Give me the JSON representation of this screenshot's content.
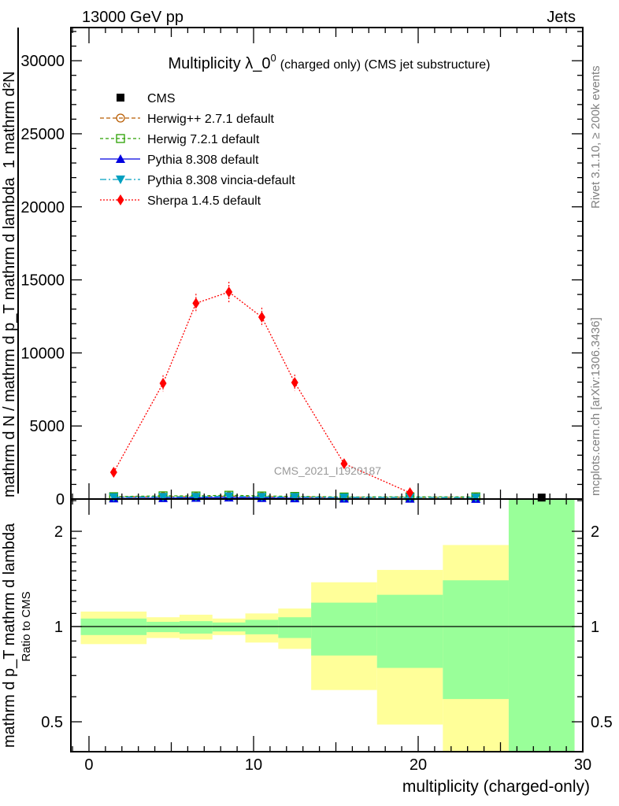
{
  "header": {
    "left": "13000 GeV pp",
    "right": "Jets"
  },
  "side": {
    "rivet": "Rivet 3.1.10, ≥ 200k events",
    "mcplots": "mcplots.cern.ch [arXiv:1306.3436]"
  },
  "watermark": "CMS_2021_I1920187",
  "ylabel": {
    "num1": "1",
    "den1": "mathrm d N / mathrm d p_T mathrm d lambda",
    "num2": "mathrm d²N",
    "den2": "mathrm d p_T mathrm d lambda"
  },
  "chart_data": [
    {
      "type": "line",
      "title_main": "Multiplicity λ_0",
      "title_sup": "0",
      "title_rest": "(charged only) (CMS jet substructure)",
      "xlabel": "multiplicity (charged-only)",
      "ylabel": "1 / N dN/dp_T dλ",
      "xlim": [
        -1.1,
        30
      ],
      "ylim": [
        0,
        32270
      ],
      "x_ticks": [
        "0",
        "10",
        "20",
        "30"
      ],
      "y_ticks": [
        "0",
        "5000",
        "10000",
        "15000",
        "20000",
        "25000",
        "30000"
      ],
      "bin_edges": [
        -0.5,
        3.5,
        5.5,
        7.5,
        9.5,
        11.5,
        13.5,
        17.5,
        21.5,
        25.5,
        29.5
      ],
      "x": [
        1.5,
        4.5,
        6.5,
        8.5,
        10.5,
        12.5,
        15.5,
        19.5,
        23.5,
        27.5
      ],
      "legend_position": "top-left",
      "series": [
        {
          "name": "CMS",
          "color": "#000000",
          "values": [
            null,
            null,
            null,
            null,
            null,
            null,
            null,
            null,
            null,
            100
          ]
        },
        {
          "name": "Herwig++ 2.7.1 default",
          "color": "#b85c00",
          "values": [
            150,
            170,
            160,
            200,
            160,
            150,
            120,
            120,
            110,
            null
          ]
        },
        {
          "name": "Herwig 7.2.1 default",
          "color": "#2aa000",
          "values": [
            160,
            220,
            210,
            260,
            210,
            180,
            140,
            150,
            150,
            null
          ]
        },
        {
          "name": "Pythia 8.308 default",
          "color": "#0000e0",
          "values": [
            40,
            60,
            80,
            100,
            70,
            50,
            30,
            20,
            10,
            null
          ]
        },
        {
          "name": "Pythia 8.308 vincia-default",
          "color": "#00a0c0",
          "values": [
            130,
            150,
            150,
            190,
            150,
            140,
            110,
            110,
            100,
            null
          ]
        },
        {
          "name": "Sherpa 1.4.5 default",
          "color": "#ff0000",
          "values": [
            1830,
            7920,
            13400,
            14170,
            12450,
            7970,
            2420,
            430,
            null,
            null
          ],
          "errors": [
            100,
            550,
            650,
            700,
            650,
            550,
            200,
            60,
            null,
            null
          ]
        }
      ]
    },
    {
      "type": "area",
      "ylabel": "Ratio to CMS",
      "yscale": "log",
      "ylim": [
        0.4,
        2.53
      ],
      "y_ticks": [
        "0.5",
        "1",
        "2"
      ],
      "bin_edges": [
        -0.5,
        3.5,
        5.5,
        7.5,
        9.5,
        11.5,
        13.5,
        17.5,
        21.5,
        25.5,
        29.5
      ],
      "band_1sigma": {
        "color": "#99ff99",
        "lo": [
          0.94,
          0.96,
          0.95,
          0.965,
          0.945,
          0.92,
          0.81,
          0.74,
          0.59,
          0.3
        ],
        "hi": [
          1.06,
          1.035,
          1.04,
          1.03,
          1.05,
          1.07,
          1.19,
          1.26,
          1.4,
          3.0
        ]
      },
      "band_2sigma": {
        "color": "#ffff99",
        "lo": [
          0.88,
          0.92,
          0.91,
          0.94,
          0.89,
          0.85,
          0.63,
          0.49,
          0.3,
          0.3
        ],
        "hi": [
          1.115,
          1.07,
          1.09,
          1.06,
          1.1,
          1.14,
          1.38,
          1.51,
          1.81,
          3.0
        ]
      }
    }
  ]
}
